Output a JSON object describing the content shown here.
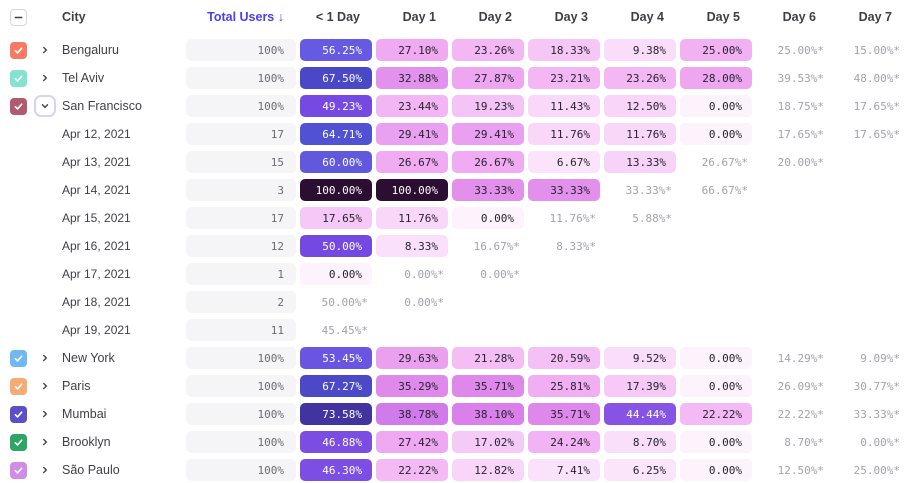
{
  "header": {
    "select_all_state": "indeterminate",
    "city_label": "City",
    "total_users_label": "Total Users",
    "sort_arrow": "↓",
    "day_columns": [
      "< 1 Day",
      "Day 1",
      "Day 2",
      "Day 3",
      "Day 4",
      "Day 5",
      "Day 6",
      "Day 7"
    ]
  },
  "colors": {
    "sorted_header_text": "#4b40f0",
    "header_text": "#3f3e46",
    "estimate_text": "#a4a1ab",
    "total_pill_bg": "#f5f4f7",
    "expanded_ring": "#d9d1f8"
  },
  "rows": [
    {
      "type": "city",
      "label": "Bengaluru",
      "checked": true,
      "checkbox_color": "#f87a62",
      "expanded": false,
      "total": "100%",
      "cells": [
        "56.25%",
        "27.10%",
        "23.26%",
        "18.33%",
        "9.38%",
        "25.00%",
        "25.00%*",
        "15.00%*"
      ]
    },
    {
      "type": "city",
      "label": "Tel Aviv",
      "checked": true,
      "checkbox_color": "#84e3d0",
      "expanded": false,
      "total": "100%",
      "cells": [
        "67.50%",
        "32.88%",
        "27.87%",
        "23.21%",
        "23.26%",
        "28.00%",
        "39.53%*",
        "48.00%*"
      ]
    },
    {
      "type": "city",
      "label": "San Francisco",
      "checked": true,
      "checkbox_color": "#b25a6e",
      "expanded": true,
      "total": "100%",
      "cells": [
        "49.23%",
        "23.44%",
        "19.23%",
        "11.43%",
        "12.50%",
        "0.00%",
        "18.75%*",
        "17.65%*"
      ]
    },
    {
      "type": "date",
      "label": "Apr 12, 2021",
      "total": "17",
      "cells": [
        "64.71%",
        "29.41%",
        "29.41%",
        "11.76%",
        "11.76%",
        "0.00%",
        "17.65%*",
        "17.65%*"
      ]
    },
    {
      "type": "date",
      "label": "Apr 13, 2021",
      "total": "15",
      "cells": [
        "60.00%",
        "26.67%",
        "26.67%",
        "6.67%",
        "13.33%",
        "26.67%*",
        "20.00%*",
        ""
      ]
    },
    {
      "type": "date",
      "label": "Apr 14, 2021",
      "total": "3",
      "cells": [
        "100.00%",
        "100.00%",
        "33.33%",
        "33.33%",
        "33.33%*",
        "66.67%*",
        "",
        ""
      ]
    },
    {
      "type": "date",
      "label": "Apr 15, 2021",
      "total": "17",
      "cells": [
        "17.65%",
        "11.76%",
        "0.00%",
        "11.76%*",
        "5.88%*",
        "",
        "",
        ""
      ]
    },
    {
      "type": "date",
      "label": "Apr 16, 2021",
      "total": "12",
      "cells": [
        "50.00%",
        "8.33%",
        "16.67%*",
        "8.33%*",
        "",
        "",
        "",
        ""
      ]
    },
    {
      "type": "date",
      "label": "Apr 17, 2021",
      "total": "1",
      "cells": [
        "0.00%",
        "0.00%*",
        "0.00%*",
        "",
        "",
        "",
        "",
        ""
      ]
    },
    {
      "type": "date",
      "label": "Apr 18, 2021",
      "total": "2",
      "cells": [
        "50.00%*",
        "0.00%*",
        "",
        "",
        "",
        "",
        "",
        ""
      ]
    },
    {
      "type": "date",
      "label": "Apr 19, 2021",
      "total": "11",
      "cells": [
        "45.45%*",
        "",
        "",
        "",
        "",
        "",
        "",
        ""
      ]
    },
    {
      "type": "city",
      "label": "New York",
      "checked": true,
      "checkbox_color": "#70b9f0",
      "expanded": false,
      "total": "100%",
      "cells": [
        "53.45%",
        "29.63%",
        "21.28%",
        "20.59%",
        "9.52%",
        "0.00%",
        "14.29%*",
        "9.09%*"
      ]
    },
    {
      "type": "city",
      "label": "Paris",
      "checked": true,
      "checkbox_color": "#f6ab74",
      "expanded": false,
      "total": "100%",
      "cells": [
        "67.27%",
        "35.29%",
        "35.71%",
        "25.81%",
        "17.39%",
        "0.00%",
        "26.09%*",
        "30.77%*"
      ]
    },
    {
      "type": "city",
      "label": "Mumbai",
      "checked": true,
      "checkbox_color": "#5b50c7",
      "expanded": false,
      "total": "100%",
      "cells": [
        "73.58%",
        "38.78%",
        "38.10%",
        "35.71%",
        "44.44%",
        "22.22%",
        "22.22%*",
        "33.33%*"
      ]
    },
    {
      "type": "city",
      "label": "Brooklyn",
      "checked": true,
      "checkbox_color": "#2ea564",
      "expanded": false,
      "total": "100%",
      "cells": [
        "46.88%",
        "27.42%",
        "17.02%",
        "24.24%",
        "8.70%",
        "0.00%",
        "8.70%*",
        "0.00%*"
      ]
    },
    {
      "type": "city",
      "label": "São Paulo",
      "checked": true,
      "checkbox_color": "#cf8de6",
      "expanded": false,
      "total": "100%",
      "cells": [
        "46.30%",
        "22.22%",
        "12.82%",
        "7.41%",
        "6.25%",
        "0.00%",
        "12.50%*",
        "25.00%*"
      ]
    }
  ]
}
